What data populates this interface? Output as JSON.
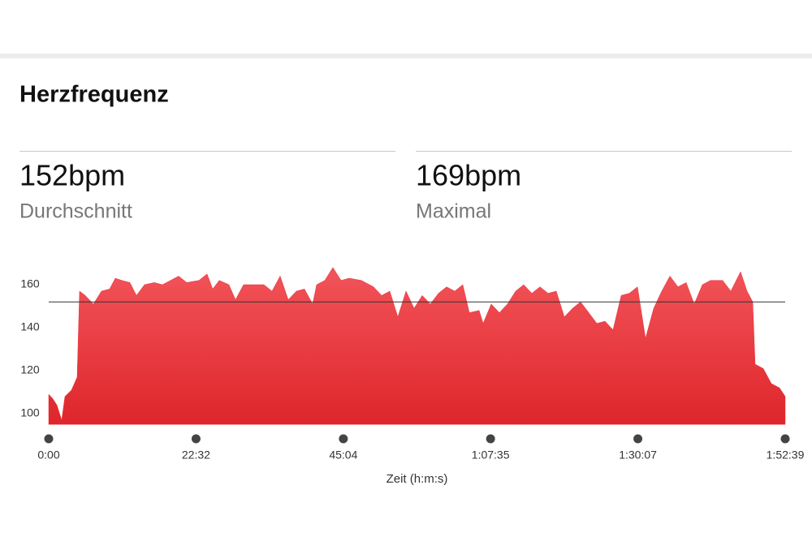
{
  "title": "Herzfrequenz",
  "stats": [
    {
      "value": "152bpm",
      "label": "Durchschnitt"
    },
    {
      "value": "169bpm",
      "label": "Maximal"
    }
  ],
  "chart_data": {
    "type": "area",
    "color": "#e8343a",
    "x": [
      0,
      37,
      75,
      119,
      149,
      209,
      261,
      283,
      335,
      410,
      484,
      559,
      611,
      671,
      745,
      805,
      879,
      969,
      1043,
      1118,
      1192,
      1267,
      1379,
      1453,
      1505,
      1565,
      1654,
      1714,
      1788,
      1900,
      1975,
      2049,
      2124,
      2198,
      2273,
      2347,
      2422,
      2459,
      2534,
      2608,
      2683,
      2757,
      2869,
      2981,
      3055,
      3130,
      3204,
      3279,
      3353,
      3428,
      3502,
      3577,
      3651,
      3726,
      3800,
      3860,
      3950,
      3987,
      4061,
      4136,
      4210,
      4285,
      4359,
      4434,
      4508,
      4583,
      4658,
      4732,
      4807,
      4881,
      4956,
      5030,
      5105,
      5179,
      5254,
      5328,
      5403,
      5477,
      5552,
      5626,
      5701,
      5775,
      5850,
      5924,
      5999,
      6073,
      6185,
      6260,
      6349,
      6409,
      6461,
      6483,
      6558,
      6632,
      6707,
      6759
    ],
    "values": [
      109,
      107,
      104,
      97,
      108,
      111,
      117,
      157,
      155,
      151,
      157,
      158,
      163,
      162,
      161,
      155,
      160,
      161,
      160,
      162,
      164,
      161,
      162,
      165,
      158,
      162,
      160,
      153,
      160,
      160,
      160,
      157,
      164,
      153,
      157,
      158,
      151,
      160,
      162,
      168,
      162,
      163,
      162,
      159,
      155,
      157,
      145,
      157,
      149,
      155,
      151,
      156,
      159,
      157,
      160,
      147,
      148,
      142,
      151,
      147,
      151,
      157,
      160,
      156,
      159,
      156,
      157,
      145,
      149,
      152,
      147,
      142,
      143,
      139,
      155,
      156,
      159,
      135,
      149,
      157,
      164,
      159,
      161,
      151,
      160,
      162,
      162,
      157,
      166,
      157,
      152,
      123,
      121,
      114,
      112,
      108
    ],
    "reference_line": 152,
    "xlim": [
      0,
      6759
    ],
    "xticks": [
      {
        "value": 0,
        "label": "0:00"
      },
      {
        "value": 1352,
        "label": "22:32"
      },
      {
        "value": 2704,
        "label": "45:04"
      },
      {
        "value": 4055,
        "label": "1:07:35"
      },
      {
        "value": 5407,
        "label": "1:30:07"
      },
      {
        "value": 6759,
        "label": "1:52:39"
      }
    ],
    "ylim": [
      95,
      170
    ],
    "yticks": [
      100,
      120,
      140,
      160
    ],
    "x_label": "Zeit (h:m:s)"
  }
}
